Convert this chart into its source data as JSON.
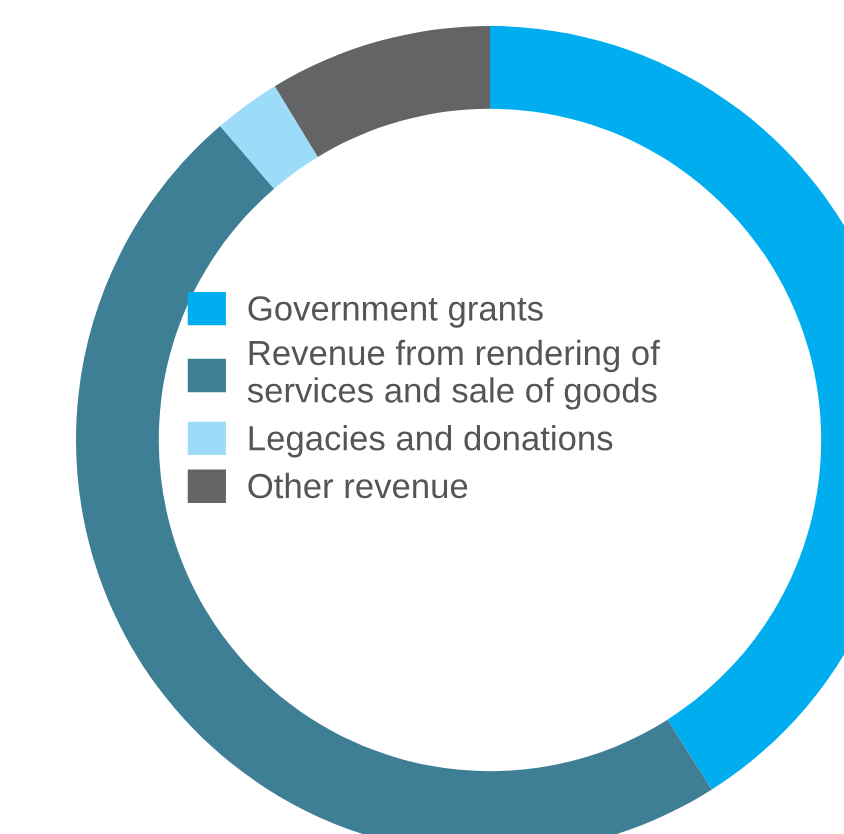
{
  "chart_data": {
    "type": "donut",
    "categories": [
      "Government grants",
      "Revenue from rendering of\nservices and sale of goods",
      "Legacies and donations",
      "Other revenue"
    ],
    "values": [
      41,
      47.7,
      2.6,
      8.7
    ],
    "colors": [
      "#00aeef",
      "#3f7f96",
      "#9ddcf9",
      "#636466"
    ],
    "legend": "center"
  }
}
